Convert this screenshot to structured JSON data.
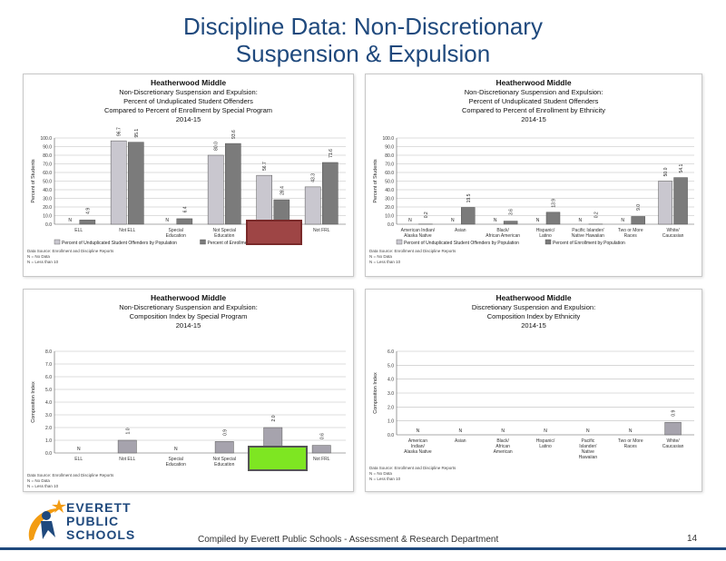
{
  "slide": {
    "title_line1": "Discipline Data: Non-Discretionary",
    "title_line2": "Suspension & Expulsion",
    "footer": "Compiled  by Everett Public Schools  - Assessment & Research Department",
    "page_number": "14",
    "logo": {
      "line1": "EVERETT",
      "line2": "PUBLIC",
      "line3": "SCHOOLS"
    }
  },
  "chart_data": [
    {
      "id": "chart1",
      "type": "bar",
      "title": [
        "Heatherwood Middle",
        "Non-Discretionary Suspension and Expulsion:",
        "Percent of Unduplicated Student Offenders",
        "Compared to Percent of Enrollment by Special Program",
        "2014-15"
      ],
      "ylabel": "Percent of Students",
      "ylim": [
        0,
        100
      ],
      "ytick_step": 10,
      "categories": [
        [
          "ELL"
        ],
        [
          "Not ELL"
        ],
        [
          "Special",
          "Education"
        ],
        [
          "Not Special",
          "Education"
        ],
        [
          ""
        ],
        [
          "Not FRL"
        ]
      ],
      "series": [
        {
          "name": "Percent of Unduplicated Student Offenders by Population",
          "color": "#c9c7cf",
          "values": [
            null,
            96.7,
            null,
            80.0,
            56.7,
            43.3
          ],
          "labels": [
            "N",
            "96.7",
            "N",
            "80.0",
            "56.7",
            "43.3"
          ]
        },
        {
          "name": "Percent of Enrollment by Population",
          "color": "#7b7b7b",
          "values": [
            4.9,
            95.1,
            6.4,
            93.6,
            28.4,
            71.6
          ],
          "labels": [
            "4.9",
            "95.1",
            "6.4",
            "93.6",
            "28.4",
            "71.6"
          ]
        }
      ],
      "notes": [
        "Data Source: Enrollment and Discipline Reports",
        "N = No Data",
        "N = Less than 10"
      ]
    },
    {
      "id": "chart2",
      "type": "bar",
      "title": [
        "Heatherwood Middle",
        "Non-Discretionary Suspension and Expulsion:",
        "Percent of Unduplicated Student Offenders",
        "Compared to Percent of Enrollment by Ethnicity",
        "2014-15"
      ],
      "ylabel": "Percent of Students",
      "ylim": [
        0,
        100
      ],
      "ytick_step": 10,
      "categories": [
        [
          "American Indian/",
          "Alaska Native"
        ],
        [
          "Asian"
        ],
        [
          "Black/",
          "African American"
        ],
        [
          "Hispanic/",
          "Latino"
        ],
        [
          "Pacific Islander/",
          "Native Hawaiian"
        ],
        [
          "Two or More",
          "Races"
        ],
        [
          "White/",
          "Caucasian"
        ]
      ],
      "series": [
        {
          "name": "Percent of Unduplicated Student Offenders by Population",
          "color": "#c9c7cf",
          "values": [
            null,
            null,
            null,
            null,
            null,
            null,
            50.0
          ],
          "labels": [
            "N",
            "N",
            "N",
            "N",
            "N",
            "N",
            "50.0"
          ]
        },
        {
          "name": "Percent of Enrollment by Population",
          "color": "#7b7b7b",
          "values": [
            0.2,
            19.5,
            3.6,
            13.9,
            0.2,
            9.0,
            54.1
          ],
          "labels": [
            "0.2",
            "19.5",
            "3.6",
            "13.9",
            "0.2",
            "9.0",
            "54.1"
          ]
        }
      ],
      "notes": [
        "Data Source: Enrollment and Discipline Reports",
        "N = No Data",
        "N = Less than 10"
      ]
    },
    {
      "id": "chart3",
      "type": "bar",
      "title": [
        "Heatherwood Middle",
        "Non-Discretionary Suspension and Expulsion:",
        "Composition Index by Special Program",
        "2014-15"
      ],
      "ylabel": "Composition Index",
      "ylim": [
        0,
        8
      ],
      "ytick_step": 1,
      "categories": [
        [
          "ELL"
        ],
        [
          "Not ELL"
        ],
        [
          "Special",
          "Education"
        ],
        [
          "Not Special",
          "Education"
        ],
        [
          ""
        ],
        [
          "Not FRL"
        ]
      ],
      "series": [
        {
          "name": "",
          "color": "#a6a3ad",
          "values": [
            null,
            1.0,
            null,
            0.9,
            2.0,
            0.6
          ],
          "labels": [
            "N",
            "1.0",
            "N",
            "0.9",
            "2.0",
            "0.6"
          ]
        }
      ],
      "notes": [
        "Data Source: Enrollment and Discipline Reports",
        "N = No Data",
        "N = Less than 10"
      ]
    },
    {
      "id": "chart4",
      "type": "bar",
      "title": [
        "Heatherwood Middle",
        "Discretionary Suspension and Expulsion:",
        "Composition Index by Ethnicity",
        "2014-15"
      ],
      "ylabel": "Composition Index",
      "ylim": [
        0,
        6
      ],
      "ytick_step": 1,
      "categories": [
        [
          "American",
          "Indian/",
          "Alaska Native"
        ],
        [
          "Asian"
        ],
        [
          "Black/",
          "African",
          "American"
        ],
        [
          "Hispanic/",
          "Latino"
        ],
        [
          "Pacific",
          "Islander/",
          "Native",
          "Hawaiian"
        ],
        [
          "Two or More",
          "Races"
        ],
        [
          "White/",
          "Caucasian"
        ]
      ],
      "series": [
        {
          "name": "",
          "color": "#a6a3ad",
          "values": [
            null,
            null,
            null,
            null,
            null,
            null,
            0.9
          ],
          "labels": [
            "N",
            "N",
            "N",
            "N",
            "N",
            "N",
            "0.9"
          ]
        }
      ],
      "notes": [
        "Data Source: Enrollment and Discipline Reports",
        "N = No Data",
        "N = Less than 10"
      ]
    }
  ]
}
